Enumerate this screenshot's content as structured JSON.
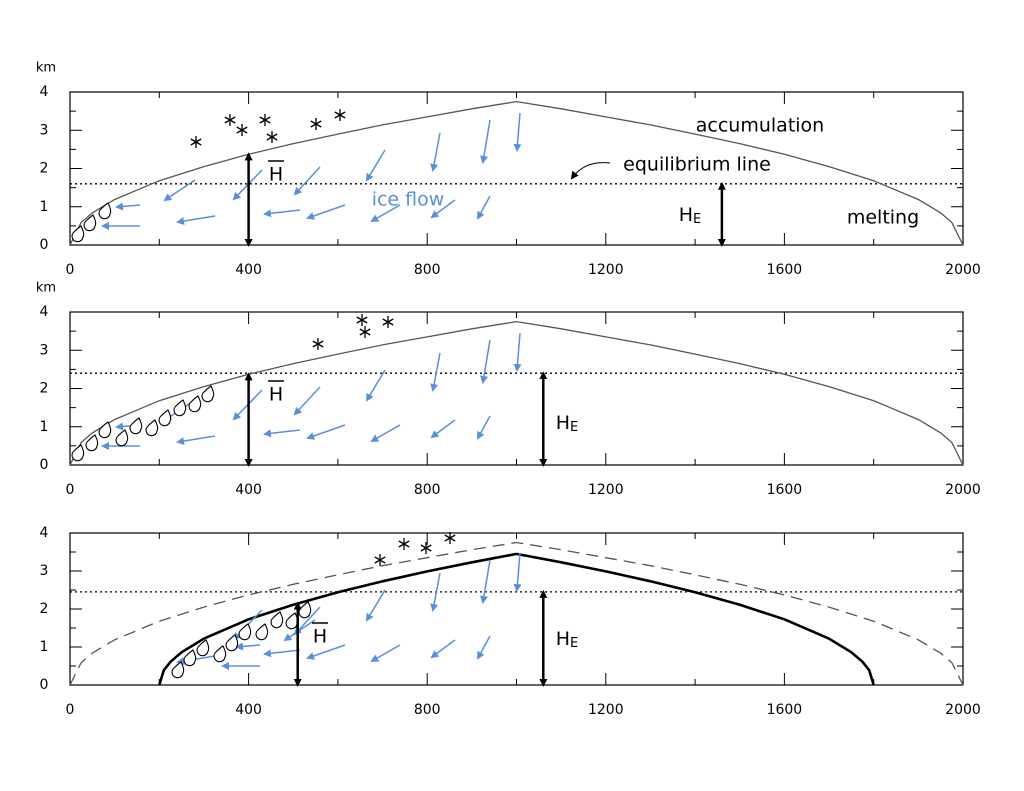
{
  "chart_data": [
    {
      "type": "line",
      "y_label": "km",
      "xlim": [
        0,
        2000
      ],
      "ylim": [
        0,
        4
      ],
      "xticks": [
        0,
        400,
        800,
        1200,
        1600,
        2000
      ],
      "yticks": [
        0,
        1,
        2,
        3,
        4
      ],
      "series": [
        {
          "color": "#555555",
          "style": "solid",
          "x": [
            0,
            25,
            50,
            100,
            200,
            300,
            400,
            500,
            600,
            700,
            800,
            900,
            1000,
            1100,
            1200,
            1300,
            1400,
            1500,
            1600,
            1700,
            1800,
            1900,
            1950,
            1975,
            2000
          ],
          "values": [
            0,
            0.59,
            0.84,
            1.19,
            1.68,
            2.05,
            2.37,
            2.65,
            2.9,
            3.14,
            3.35,
            3.56,
            3.75,
            3.56,
            3.35,
            3.14,
            2.9,
            2.65,
            2.37,
            2.05,
            1.68,
            1.19,
            0.84,
            0.59,
            0
          ]
        }
      ],
      "equilibrium_line": 1.6,
      "labels": {
        "accumulation": "accumulation",
        "equilibrium": "equilibrium line",
        "ice_flow": "ice flow",
        "melting": "melting"
      },
      "hbar_label": "H",
      "he_label": {
        "main": "H",
        "sub": "E"
      }
    },
    {
      "type": "line",
      "y_label": "km",
      "xlim": [
        0,
        2000
      ],
      "ylim": [
        0,
        4
      ],
      "xticks": [
        0,
        400,
        800,
        1200,
        1600,
        2000
      ],
      "yticks": [
        0,
        1,
        2,
        3,
        4
      ],
      "series": [
        {
          "color": "#555555",
          "style": "solid",
          "x": [
            0,
            25,
            50,
            100,
            200,
            300,
            400,
            500,
            600,
            700,
            800,
            900,
            1000,
            1100,
            1200,
            1300,
            1400,
            1500,
            1600,
            1700,
            1800,
            1900,
            1950,
            1975,
            2000
          ],
          "values": [
            0,
            0.59,
            0.84,
            1.19,
            1.68,
            2.05,
            2.37,
            2.65,
            2.9,
            3.14,
            3.35,
            3.56,
            3.75,
            3.56,
            3.35,
            3.14,
            2.9,
            2.65,
            2.37,
            2.05,
            1.68,
            1.19,
            0.84,
            0.59,
            0
          ]
        }
      ],
      "equilibrium_line": 2.4,
      "hbar_label": "H",
      "he_label": {
        "main": "H",
        "sub": "E"
      }
    },
    {
      "type": "line",
      "xlim": [
        0,
        2000
      ],
      "ylim": [
        0,
        4
      ],
      "xticks": [
        0,
        400,
        800,
        1200,
        1600,
        2000
      ],
      "yticks": [
        0,
        1,
        2,
        3,
        4
      ],
      "series": [
        {
          "color": "#555555",
          "style": "dashed",
          "x": [
            0,
            25,
            50,
            100,
            200,
            300,
            400,
            500,
            600,
            700,
            800,
            900,
            1000,
            1100,
            1200,
            1300,
            1400,
            1500,
            1600,
            1700,
            1800,
            1900,
            1950,
            1975,
            2000
          ],
          "values": [
            0,
            0.59,
            0.84,
            1.19,
            1.68,
            2.05,
            2.37,
            2.65,
            2.9,
            3.14,
            3.35,
            3.56,
            3.75,
            3.56,
            3.35,
            3.14,
            2.9,
            2.65,
            2.37,
            2.05,
            1.68,
            1.19,
            0.84,
            0.59,
            0
          ]
        },
        {
          "color": "#000000",
          "style": "solid",
          "x": [
            200,
            210,
            225,
            250,
            300,
            400,
            500,
            600,
            700,
            800,
            900,
            1000,
            1100,
            1200,
            1300,
            1400,
            1500,
            1600,
            1700,
            1750,
            1775,
            1790,
            1800
          ],
          "values": [
            0,
            0.39,
            0.61,
            0.86,
            1.22,
            1.73,
            2.11,
            2.44,
            2.73,
            2.99,
            3.23,
            3.45,
            3.23,
            2.99,
            2.73,
            2.44,
            2.11,
            1.73,
            1.22,
            0.86,
            0.61,
            0.39,
            0
          ]
        }
      ],
      "equilibrium_line": 2.45,
      "hbar_label": "H",
      "he_label": {
        "main": "H",
        "sub": "E"
      }
    }
  ]
}
